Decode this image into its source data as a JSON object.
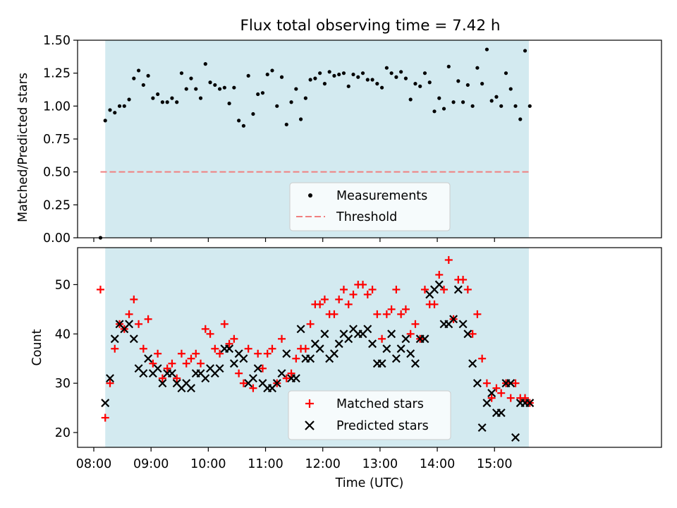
{
  "figure": {
    "title": "Flux total observing time = 7.42 h"
  },
  "chart_data": [
    {
      "type": "scatter",
      "ylabel": "Matched/Predicted stars",
      "xlabel": "",
      "ylim": [
        0.0,
        1.5
      ],
      "yticks": [
        "0.00",
        "0.25",
        "0.50",
        "0.75",
        "1.00",
        "1.25",
        "1.50"
      ],
      "x_unit": "minutes since 08:00 UTC",
      "xlim": [
        -17,
        595
      ],
      "observing_window": [
        12,
        456
      ],
      "threshold": 0.5,
      "threshold_range": [
        7,
        456
      ],
      "legend": {
        "position": "bottom-center",
        "entries": [
          "Measurements",
          "Threshold"
        ]
      },
      "colors": {
        "window": "#d3eaf0",
        "measurements": "#000000",
        "threshold": "#f08080"
      },
      "series": [
        {
          "name": "Measurements",
          "points": [
            [
              7,
              0.0
            ],
            [
              12,
              0.89
            ],
            [
              17,
              0.97
            ],
            [
              22,
              0.95
            ],
            [
              27,
              1.0
            ],
            [
              32,
              1.0
            ],
            [
              37,
              1.05
            ],
            [
              42,
              1.21
            ],
            [
              47,
              1.27
            ],
            [
              52,
              1.16
            ],
            [
              57,
              1.23
            ],
            [
              62,
              1.06
            ],
            [
              67,
              1.09
            ],
            [
              72,
              1.03
            ],
            [
              77,
              1.03
            ],
            [
              82,
              1.06
            ],
            [
              87,
              1.03
            ],
            [
              92,
              1.25
            ],
            [
              97,
              1.13
            ],
            [
              102,
              1.21
            ],
            [
              107,
              1.13
            ],
            [
              112,
              1.06
            ],
            [
              117,
              1.32
            ],
            [
              122,
              1.18
            ],
            [
              127,
              1.16
            ],
            [
              132,
              1.13
            ],
            [
              137,
              1.14
            ],
            [
              142,
              1.02
            ],
            [
              147,
              1.14
            ],
            [
              152,
              0.89
            ],
            [
              157,
              0.85
            ],
            [
              162,
              1.23
            ],
            [
              167,
              0.94
            ],
            [
              172,
              1.09
            ],
            [
              177,
              1.1
            ],
            [
              182,
              1.24
            ],
            [
              187,
              1.27
            ],
            [
              192,
              1.0
            ],
            [
              197,
              1.22
            ],
            [
              202,
              0.86
            ],
            [
              207,
              1.03
            ],
            [
              212,
              1.13
            ],
            [
              217,
              0.9
            ],
            [
              222,
              1.06
            ],
            [
              227,
              1.2
            ],
            [
              232,
              1.21
            ],
            [
              237,
              1.25
            ],
            [
              242,
              1.17
            ],
            [
              247,
              1.26
            ],
            [
              252,
              1.23
            ],
            [
              257,
              1.24
            ],
            [
              262,
              1.25
            ],
            [
              267,
              1.15
            ],
            [
              272,
              1.24
            ],
            [
              277,
              1.22
            ],
            [
              282,
              1.25
            ],
            [
              287,
              1.2
            ],
            [
              292,
              1.2
            ],
            [
              297,
              1.17
            ],
            [
              302,
              1.14
            ],
            [
              307,
              1.29
            ],
            [
              312,
              1.25
            ],
            [
              317,
              1.22
            ],
            [
              322,
              1.26
            ],
            [
              327,
              1.21
            ],
            [
              332,
              1.05
            ],
            [
              337,
              1.17
            ],
            [
              342,
              1.15
            ],
            [
              347,
              1.25
            ],
            [
              352,
              1.18
            ],
            [
              357,
              0.96
            ],
            [
              362,
              1.06
            ],
            [
              367,
              0.98
            ],
            [
              372,
              1.3
            ],
            [
              377,
              1.03
            ],
            [
              382,
              1.19
            ],
            [
              387,
              1.03
            ],
            [
              392,
              1.16
            ],
            [
              397,
              1.0
            ],
            [
              402,
              1.29
            ],
            [
              407,
              1.17
            ],
            [
              412,
              1.43
            ],
            [
              417,
              1.04
            ],
            [
              422,
              1.07
            ],
            [
              427,
              1.0
            ],
            [
              432,
              1.25
            ],
            [
              437,
              1.13
            ],
            [
              442,
              1.0
            ],
            [
              447,
              0.9
            ],
            [
              452,
              1.42
            ],
            [
              457,
              1.0
            ]
          ]
        }
      ]
    },
    {
      "type": "scatter",
      "ylabel": "Count",
      "xlabel": "Time (UTC)",
      "ylim": [
        17.0,
        57.5
      ],
      "yticks": [
        "20",
        "30",
        "40",
        "50"
      ],
      "x_unit": "minutes since 08:00 UTC",
      "xlim": [
        -17,
        595
      ],
      "xticks": [
        "08:00",
        "09:00",
        "10:00",
        "11:00",
        "12:00",
        "13:00",
        "14:00",
        "15:00"
      ],
      "observing_window": [
        12,
        456
      ],
      "legend": {
        "position": "bottom-center",
        "entries": [
          "Matched stars",
          "Predicted stars"
        ]
      },
      "colors": {
        "window": "#d3eaf0",
        "matched": "#ff0000",
        "predicted": "#000000"
      },
      "series": [
        {
          "name": "Matched stars",
          "x": [
            7,
            12,
            17,
            22,
            27,
            32,
            37,
            42,
            47,
            52,
            57,
            62,
            67,
            72,
            77,
            82,
            87,
            92,
            97,
            102,
            107,
            112,
            117,
            122,
            127,
            132,
            137,
            142,
            147,
            152,
            157,
            162,
            167,
            172,
            177,
            182,
            187,
            192,
            197,
            202,
            207,
            212,
            217,
            222,
            227,
            232,
            237,
            242,
            247,
            252,
            257,
            262,
            267,
            272,
            277,
            282,
            287,
            292,
            297,
            302,
            307,
            312,
            317,
            322,
            327,
            332,
            337,
            342,
            347,
            352,
            357,
            362,
            367,
            372,
            377,
            382,
            387,
            392,
            397,
            402,
            407,
            412,
            417,
            422,
            427,
            432,
            437,
            442,
            447,
            452,
            457
          ],
          "values": [
            49,
            23,
            30,
            37,
            42,
            41,
            44,
            47,
            42,
            37,
            43,
            34,
            36,
            31,
            33,
            34,
            31,
            36,
            34,
            35,
            36,
            34,
            41,
            40,
            37,
            36,
            42,
            38,
            39,
            32,
            30,
            37,
            29,
            36,
            33,
            36,
            37,
            30,
            39,
            31,
            32,
            35,
            37,
            37,
            42,
            46,
            46,
            47,
            44,
            44,
            47,
            49,
            46,
            48,
            50,
            50,
            48,
            49,
            44,
            39,
            44,
            45,
            49,
            44,
            45,
            40,
            42,
            39,
            49,
            46,
            46,
            52,
            49,
            55,
            43,
            51,
            51,
            49,
            40,
            44,
            35,
            30,
            27,
            29,
            28,
            30,
            27,
            30,
            27,
            27,
            26
          ]
        },
        {
          "name": "Predicted stars",
          "x": [
            12,
            17,
            22,
            27,
            32,
            37,
            42,
            47,
            52,
            57,
            62,
            67,
            72,
            77,
            82,
            87,
            92,
            97,
            102,
            107,
            112,
            117,
            122,
            127,
            132,
            137,
            142,
            147,
            152,
            157,
            162,
            167,
            172,
            177,
            182,
            187,
            192,
            197,
            202,
            207,
            212,
            217,
            222,
            227,
            232,
            237,
            242,
            247,
            252,
            257,
            262,
            267,
            272,
            277,
            282,
            287,
            292,
            297,
            302,
            307,
            312,
            317,
            322,
            327,
            332,
            337,
            342,
            347,
            352,
            357,
            362,
            367,
            372,
            377,
            382,
            387,
            392,
            397,
            402,
            407,
            412,
            417,
            422,
            427,
            432,
            437,
            442,
            447,
            452,
            457
          ],
          "values": [
            26,
            31,
            39,
            42,
            41,
            42,
            39,
            33,
            32,
            35,
            32,
            33,
            30,
            32,
            32,
            30,
            29,
            30,
            29,
            32,
            32,
            31,
            33,
            32,
            33,
            37,
            37,
            34,
            36,
            35,
            30,
            31,
            33,
            30,
            29,
            29,
            30,
            32,
            36,
            31,
            31,
            41,
            35,
            35,
            38,
            37,
            40,
            35,
            36,
            38,
            40,
            39,
            41,
            40,
            40,
            41,
            38,
            34,
            34,
            37,
            40,
            35,
            37,
            39,
            36,
            34,
            39,
            39,
            48,
            49,
            50,
            42,
            42,
            43,
            49,
            42,
            40,
            34,
            30,
            21,
            26,
            28,
            24,
            24,
            30,
            30,
            19,
            26,
            26,
            26
          ]
        }
      ]
    }
  ]
}
